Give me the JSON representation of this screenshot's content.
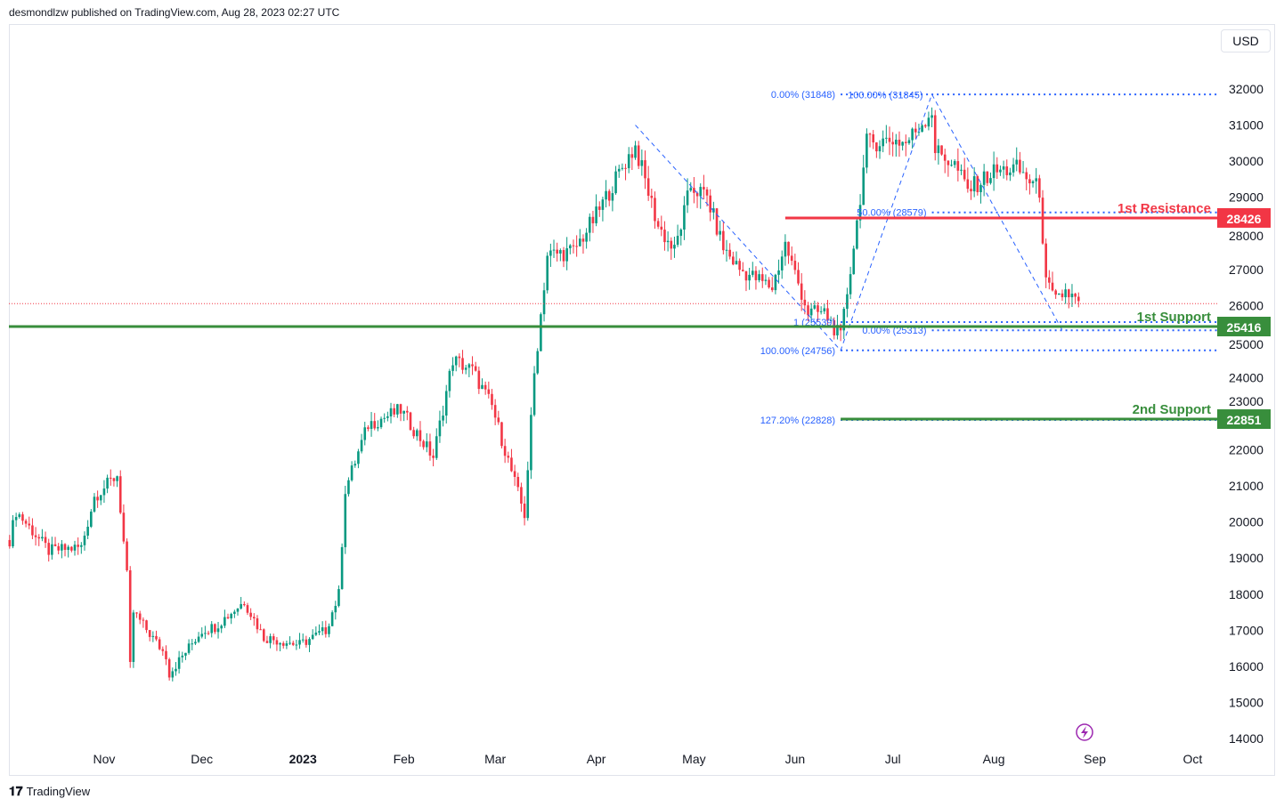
{
  "header": {
    "published": "desmondlzw published on TradingView.com, Aug 28, 2023 02:27 UTC"
  },
  "currency": "USD",
  "footer": {
    "logo": "TradingView"
  },
  "colors": {
    "up": "#089981",
    "down": "#f23645",
    "resistance": "#f23645",
    "support": "#388e3c",
    "fib": "#2962ff"
  },
  "chart_data": {
    "type": "candlestick",
    "ylim": [
      14000,
      32000
    ],
    "y_ticks": [
      14000,
      15000,
      16000,
      17000,
      18000,
      19000,
      20000,
      21000,
      22000,
      23000,
      24000,
      25000,
      26000,
      27000,
      28000,
      29000,
      30000,
      31000,
      32000
    ],
    "x_ticks": [
      {
        "label": "Nov",
        "date": "2022-11-01"
      },
      {
        "label": "Dec",
        "date": "2022-12-01"
      },
      {
        "label": "2023",
        "date": "2023-01-01",
        "bold": true
      },
      {
        "label": "Feb",
        "date": "2023-02-01"
      },
      {
        "label": "Mar",
        "date": "2023-03-01"
      },
      {
        "label": "Apr",
        "date": "2023-04-01"
      },
      {
        "label": "May",
        "date": "2023-05-01"
      },
      {
        "label": "Jun",
        "date": "2023-06-01"
      },
      {
        "label": "Jul",
        "date": "2023-07-01"
      },
      {
        "label": "Aug",
        "date": "2023-08-01"
      },
      {
        "label": "Sep",
        "date": "2023-09-01"
      },
      {
        "label": "Oct",
        "date": "2023-10-01"
      }
    ],
    "start_date": "2022-10-03",
    "close_anchors": [
      [
        "2022-10-03",
        19500
      ],
      [
        "2022-10-05",
        20300
      ],
      [
        "2022-10-15",
        19200
      ],
      [
        "2022-10-25",
        19300
      ],
      [
        "2022-10-29",
        20700
      ],
      [
        "2022-11-05",
        21300
      ],
      [
        "2022-11-08",
        18500
      ],
      [
        "2022-11-09",
        16000
      ],
      [
        "2022-11-10",
        17500
      ],
      [
        "2022-11-20",
        16300
      ],
      [
        "2022-11-21",
        15800
      ],
      [
        "2022-12-01",
        17000
      ],
      [
        "2022-12-05",
        17100
      ],
      [
        "2022-12-14",
        17800
      ],
      [
        "2022-12-20",
        16800
      ],
      [
        "2022-12-31",
        16600
      ],
      [
        "2023-01-08",
        17000
      ],
      [
        "2023-01-12",
        18000
      ],
      [
        "2023-01-14",
        20900
      ],
      [
        "2023-01-21",
        22700
      ],
      [
        "2023-01-31",
        23100
      ],
      [
        "2023-02-10",
        21800
      ],
      [
        "2023-02-16",
        24500
      ],
      [
        "2023-02-22",
        24200
      ],
      [
        "2023-02-28",
        23200
      ],
      [
        "2023-03-03",
        22300
      ],
      [
        "2023-03-10",
        20200
      ],
      [
        "2023-03-13",
        24100
      ],
      [
        "2023-03-17",
        27400
      ],
      [
        "2023-03-25",
        27500
      ],
      [
        "2023-04-01",
        28500
      ],
      [
        "2023-04-10",
        30000
      ],
      [
        "2023-04-13",
        30400
      ],
      [
        "2023-04-20",
        28200
      ],
      [
        "2023-04-25",
        27500
      ],
      [
        "2023-04-30",
        29300
      ],
      [
        "2023-05-05",
        29000
      ],
      [
        "2023-05-10",
        27600
      ],
      [
        "2023-05-15",
        27000
      ],
      [
        "2023-05-25",
        26500
      ],
      [
        "2023-05-29",
        27700
      ],
      [
        "2023-06-05",
        25800
      ],
      [
        "2023-06-10",
        25800
      ],
      [
        "2023-06-15",
        25100
      ],
      [
        "2023-06-20",
        28300
      ],
      [
        "2023-06-23",
        30500
      ],
      [
        "2023-07-01",
        30600
      ],
      [
        "2023-07-05",
        30500
      ],
      [
        "2023-07-13",
        31400
      ],
      [
        "2023-07-14",
        30300
      ],
      [
        "2023-07-20",
        29900
      ],
      [
        "2023-07-24",
        29200
      ],
      [
        "2023-08-01",
        29700
      ],
      [
        "2023-08-08",
        29800
      ],
      [
        "2023-08-15",
        29200
      ],
      [
        "2023-08-17",
        26600
      ],
      [
        "2023-08-20",
        26100
      ],
      [
        "2023-08-23",
        26400
      ],
      [
        "2023-08-27",
        26050
      ]
    ],
    "last_price": 26050,
    "levels": [
      {
        "name": "1st Resistance",
        "value": 28426,
        "label": "28426",
        "type": "resistance",
        "from": "2023-05-29"
      },
      {
        "name": "1st Support",
        "value": 25416,
        "label": "25416",
        "type": "support",
        "from": null
      },
      {
        "name": "2nd Support",
        "value": 22851,
        "label": "22851",
        "type": "support",
        "from": "2023-06-15"
      }
    ],
    "fib_levels": [
      {
        "text": "0.00% (31848)",
        "value": 31848,
        "from": "2023-06-15"
      },
      {
        "text": "100.00% (31845)",
        "value": 31845,
        "from": "2023-07-13"
      },
      {
        "text": "50.00% (28579)",
        "value": 28579,
        "from": "2023-07-13"
      },
      {
        "text": "1 (25539)",
        "value": 25539,
        "from": "2023-06-15"
      },
      {
        "text": "0.00% (25313)",
        "value": 25313,
        "from": "2023-07-13"
      },
      {
        "text": "100.00% (24756)",
        "value": 24756,
        "from": "2023-06-15"
      },
      {
        "text": "127.20% (22828)",
        "value": 22828,
        "from": "2023-06-15"
      }
    ],
    "zigzag": [
      [
        "2023-04-13",
        31000
      ],
      [
        "2023-06-15",
        24756
      ],
      [
        "2023-07-13",
        31848
      ],
      [
        "2023-08-22",
        25313
      ]
    ]
  }
}
